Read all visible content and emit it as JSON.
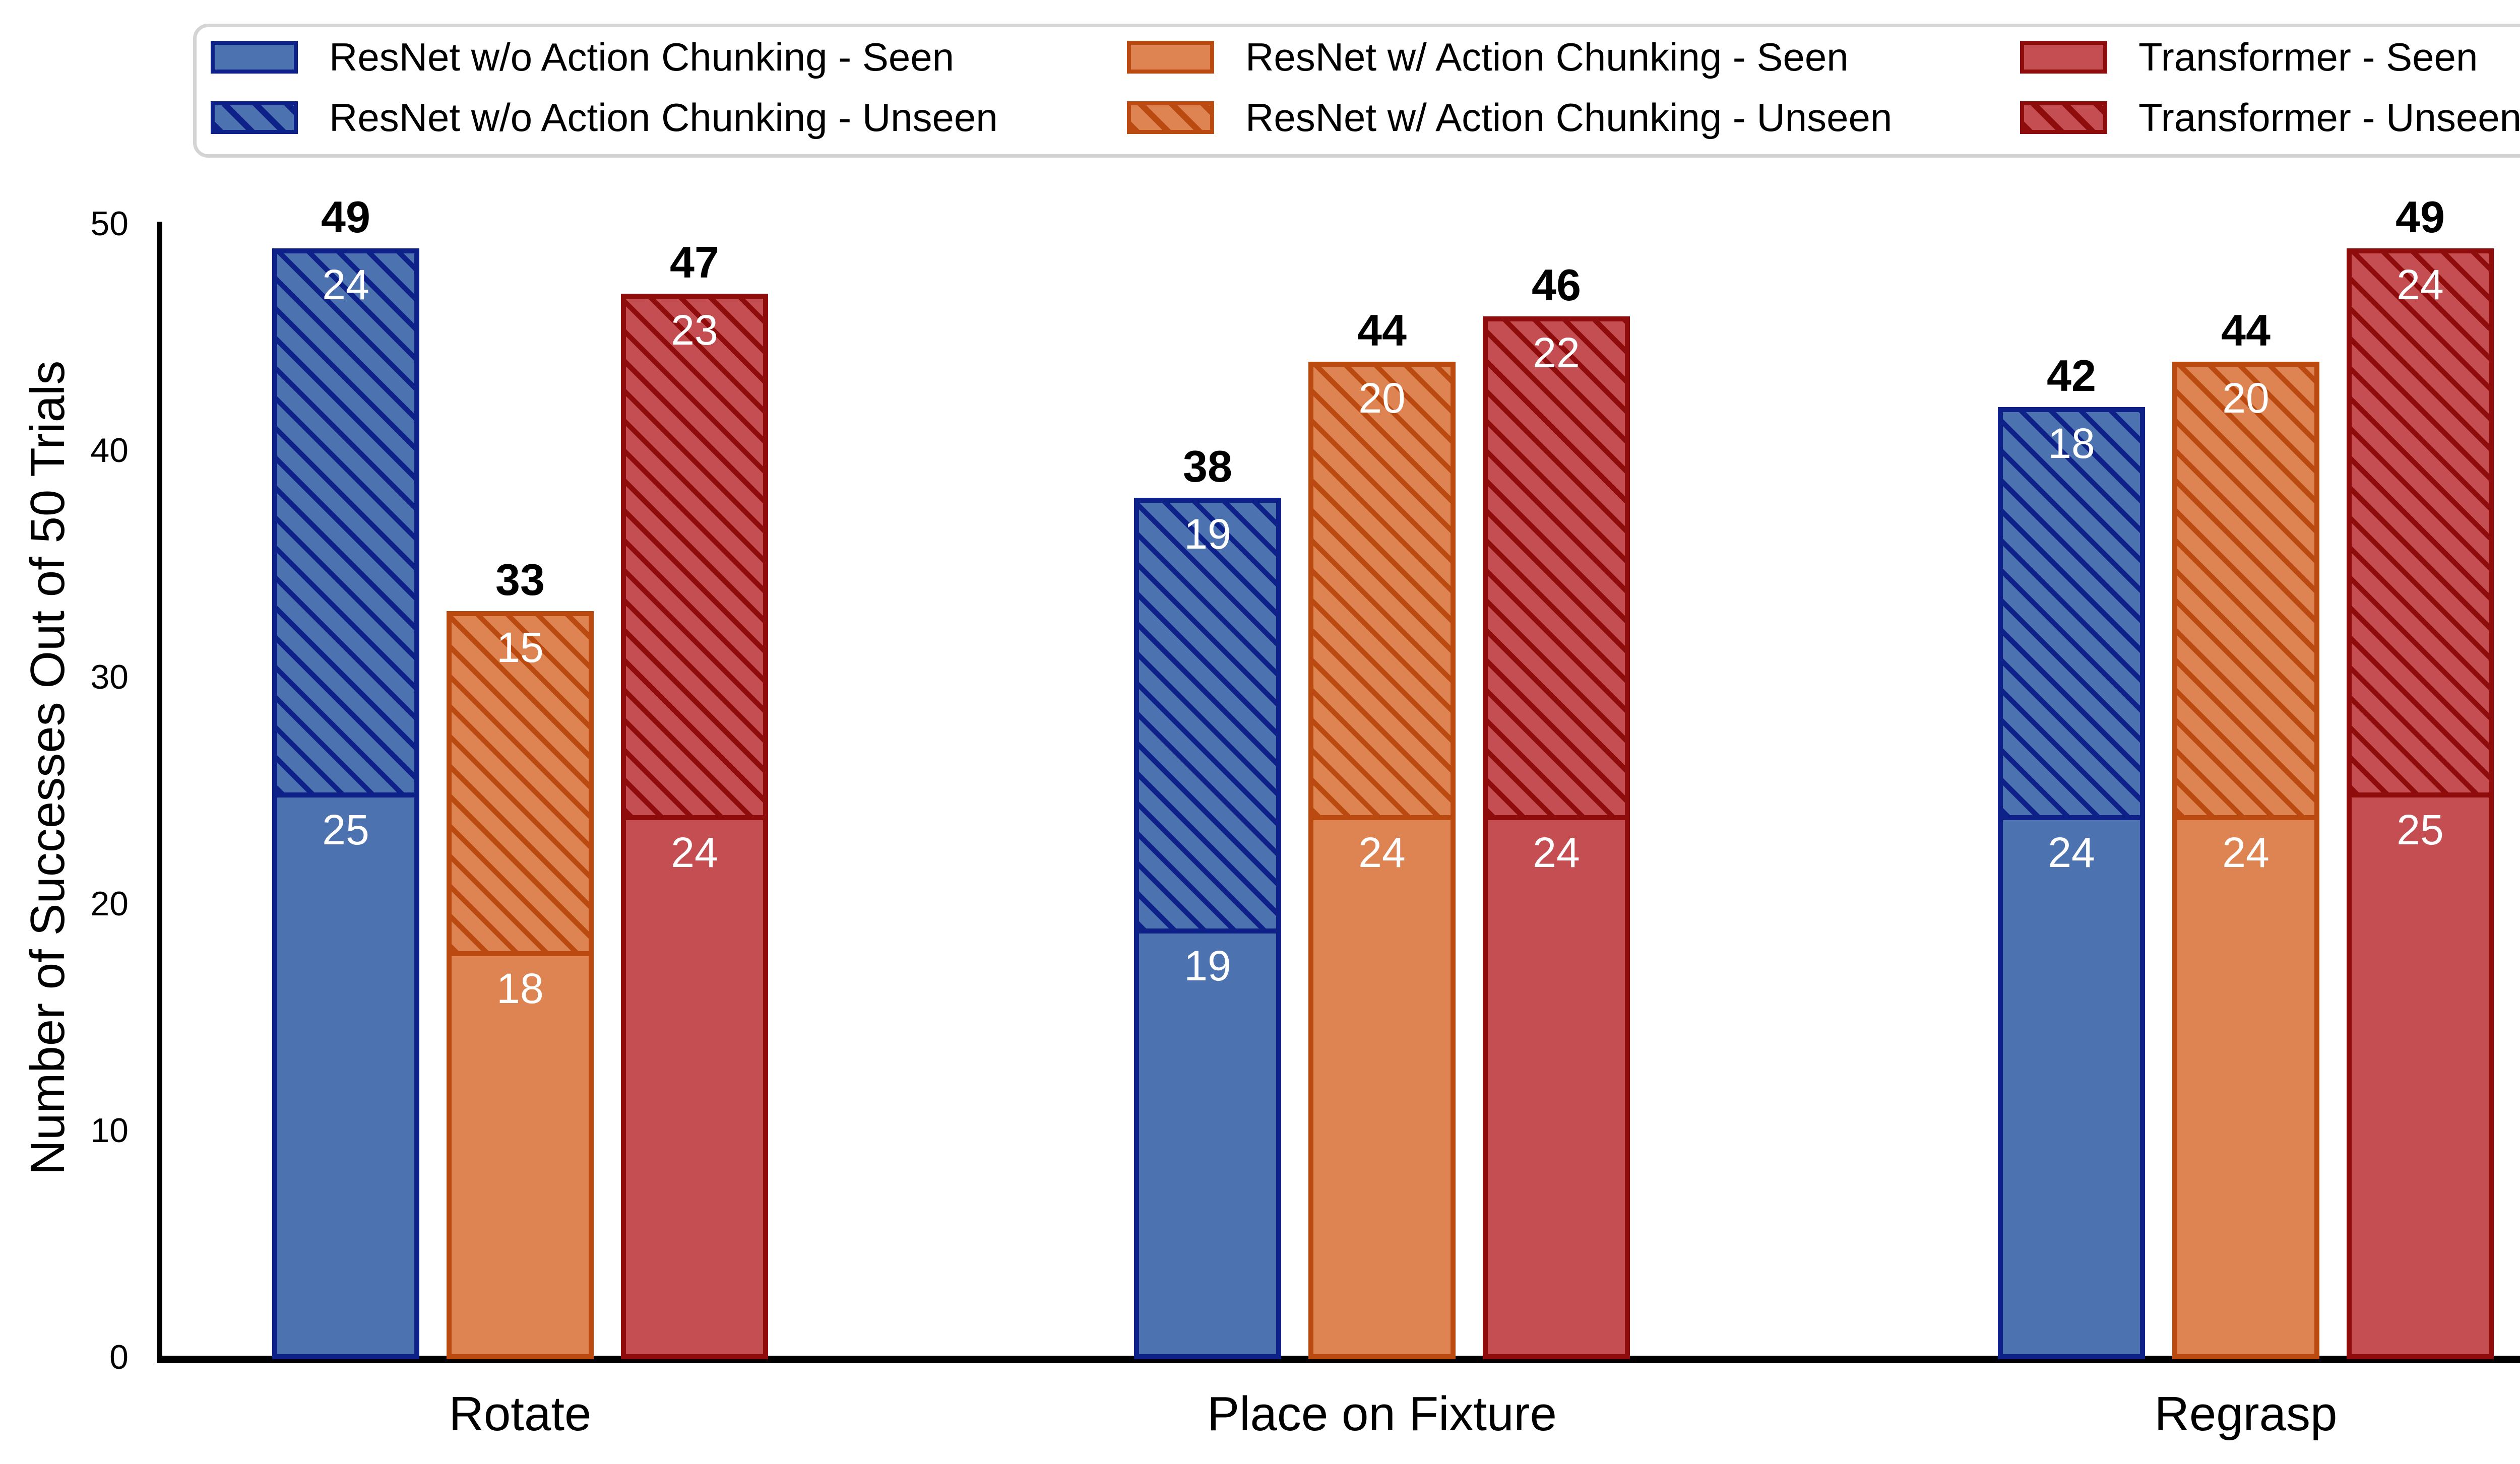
{
  "legend": {
    "entries": [
      {
        "label": "ResNet w/o Action Chunking - Seen",
        "series": 0,
        "hatch": false
      },
      {
        "label": "ResNet w/o Action Chunking - Unseen",
        "series": 0,
        "hatch": true
      },
      {
        "label": "ResNet w/ Action Chunking - Seen",
        "series": 1,
        "hatch": false
      },
      {
        "label": "ResNet w/ Action Chunking - Unseen",
        "series": 1,
        "hatch": true
      },
      {
        "label": "Transformer - Seen",
        "series": 2,
        "hatch": false
      },
      {
        "label": "Transformer - Unseen",
        "series": 2,
        "hatch": true
      }
    ]
  },
  "chart_data": {
    "type": "bar",
    "stacked": true,
    "title": "",
    "xlabel": "",
    "ylabel": "Number of Successes Out of 50 Trials",
    "ylim": [
      0,
      50
    ],
    "yticks": [
      0,
      10,
      20,
      30,
      40,
      50
    ],
    "grid": false,
    "legend_position": "top",
    "hatch_meaning": "Unseen segments are hatched, Seen segments are solid",
    "series": [
      {
        "name": "ResNet w/o Action Chunking",
        "fill": "#4C72B0",
        "edge": "#0E2189"
      },
      {
        "name": "ResNet w/ Action Chunking",
        "fill": "#DD8452",
        "edge": "#BB4A10"
      },
      {
        "name": "Transformer",
        "fill": "#C44E52",
        "edge": "#8E0C0C"
      }
    ],
    "categories": [
      "Rotate",
      "Place on Fixture",
      "Regrasp"
    ],
    "values": {
      "seen": [
        [
          25,
          18,
          24
        ],
        [
          19,
          24,
          24
        ],
        [
          24,
          24,
          25
        ]
      ],
      "unseen": [
        [
          24,
          15,
          23
        ],
        [
          19,
          20,
          22
        ],
        [
          18,
          20,
          24
        ]
      ],
      "totals": [
        [
          49,
          33,
          47
        ],
        [
          38,
          44,
          46
        ],
        [
          42,
          44,
          49
        ]
      ]
    }
  }
}
